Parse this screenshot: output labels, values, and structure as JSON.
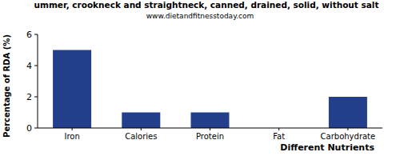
{
  "chart_data": {
    "type": "bar",
    "title": "ummer, crookneck and straightneck, canned, drained, solid, without salt",
    "subtitle": "www.dietandfitnesstoday.com",
    "x_label": "Different Nutrients",
    "y_label": "Percentage of RDA (%)",
    "categories": [
      "Iron",
      "Calories",
      "Protein",
      "Fat",
      "Carbohydrate"
    ],
    "values": [
      5,
      1,
      1,
      0,
      2
    ],
    "color": "#233e8b",
    "ylim": [
      0,
      6
    ],
    "yticks": [
      0,
      2,
      4,
      6
    ],
    "grid": false
  }
}
